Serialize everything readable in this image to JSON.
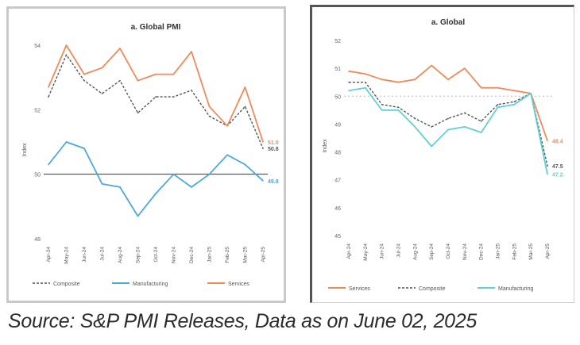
{
  "chart_data": [
    {
      "type": "line",
      "title": "a. Global PMI",
      "ylabel": "Index",
      "ylim": [
        48,
        54
      ],
      "yticks": [
        48,
        50,
        52,
        54
      ],
      "reference_line": 50,
      "reference_line_style": "solid",
      "categories": [
        "Apr-24",
        "May-24",
        "Jun-24",
        "Jul-24",
        "Aug-24",
        "Sep-24",
        "Oct-24",
        "Nov-24",
        "Dec-24",
        "Jan-25",
        "Feb-25",
        "Mar-25",
        "Apr-25"
      ],
      "series": [
        {
          "name": "Composite",
          "color": "#555555",
          "style": "dashed",
          "values": [
            52.4,
            53.7,
            52.9,
            52.5,
            52.9,
            51.9,
            52.4,
            52.4,
            52.6,
            51.8,
            51.5,
            52.1,
            50.8
          ],
          "end_label": "50.8"
        },
        {
          "name": "Manufacturing",
          "color": "#4aa8dc",
          "style": "solid",
          "values": [
            50.3,
            51.0,
            50.8,
            49.7,
            49.6,
            48.7,
            49.4,
            50.0,
            49.6,
            50.0,
            50.6,
            50.3,
            49.8
          ],
          "end_label": "49.8"
        },
        {
          "name": "Services",
          "color": "#ef8a5a",
          "style": "solid",
          "values": [
            52.7,
            54.0,
            53.1,
            53.3,
            53.9,
            52.9,
            53.1,
            53.1,
            53.8,
            52.1,
            51.5,
            52.7,
            51.0
          ],
          "end_label": "51.0"
        }
      ],
      "legend": "bottom"
    },
    {
      "type": "line",
      "title": "a. Global",
      "ylabel": "Index",
      "ylim": [
        45,
        52
      ],
      "yticks": [
        45,
        46,
        47,
        48,
        49,
        50,
        51,
        52
      ],
      "reference_line": 50,
      "reference_line_style": "dotted",
      "categories": [
        "Apr-24",
        "May-24",
        "Jun-24",
        "Jul-24",
        "Aug-24",
        "Sep-24",
        "Oct-24",
        "Nov-24",
        "Dec-24",
        "Jan-25",
        "Feb-25",
        "Mar-25",
        "Apr-25"
      ],
      "series": [
        {
          "name": "Services",
          "color": "#ef8a5a",
          "style": "solid",
          "values": [
            50.9,
            50.8,
            50.6,
            50.5,
            50.6,
            51.1,
            50.6,
            51.0,
            50.3,
            50.3,
            50.2,
            50.1,
            48.4
          ],
          "end_label": "48.4"
        },
        {
          "name": "Composite",
          "color": "#555555",
          "style": "dashed",
          "values": [
            50.5,
            50.5,
            49.7,
            49.6,
            49.2,
            48.9,
            49.2,
            49.4,
            49.1,
            49.7,
            49.8,
            50.1,
            47.5
          ],
          "end_label": "47.5"
        },
        {
          "name": "Manufacturing",
          "color": "#5fd0d6",
          "style": "solid",
          "values": [
            50.2,
            50.3,
            49.5,
            49.5,
            48.9,
            48.2,
            48.8,
            48.9,
            48.7,
            49.6,
            49.7,
            50.1,
            47.2
          ],
          "end_label": "47.2"
        }
      ],
      "legend": "bottom"
    }
  ],
  "footer": {
    "source": "Source: S&P PMI Releases, Data as on June 02, 2025"
  }
}
